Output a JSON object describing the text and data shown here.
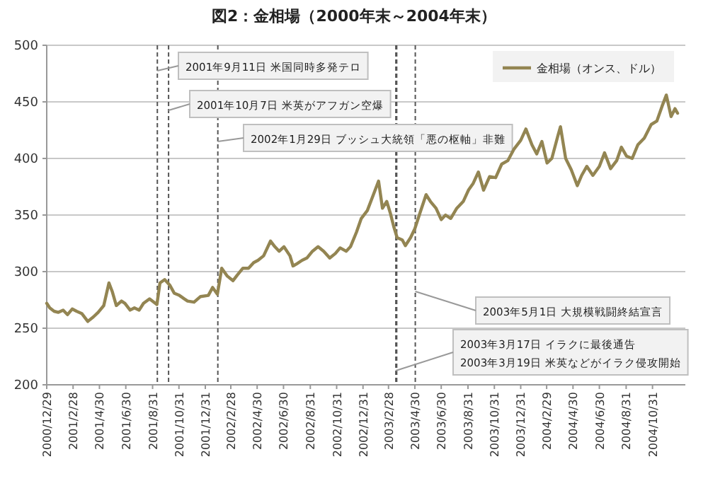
{
  "chart_data": {
    "type": "line",
    "title": "図2：金相場（2000年末～2004年末）",
    "x": [
      "2000-12-29",
      "2001-01-05",
      "2001-01-15",
      "2001-01-25",
      "2001-02-05",
      "2001-02-15",
      "2001-02-26",
      "2001-03-08",
      "2001-03-20",
      "2001-03-30",
      "2001-04-03",
      "2001-04-16",
      "2001-04-27",
      "2001-05-10",
      "2001-05-22",
      "2001-05-30",
      "2001-06-08",
      "2001-06-20",
      "2001-06-28",
      "2001-07-10",
      "2001-07-20",
      "2001-07-31",
      "2001-08-10",
      "2001-08-24",
      "2001-09-10",
      "2001-09-17",
      "2001-09-28",
      "2001-10-10",
      "2001-10-20",
      "2001-11-01",
      "2001-11-12",
      "2001-11-20",
      "2001-12-05",
      "2001-12-20",
      "2002-01-07",
      "2002-01-17",
      "2002-01-28",
      "2002-02-07",
      "2002-02-20",
      "2002-03-05",
      "2002-03-15",
      "2002-03-28",
      "2002-04-10",
      "2002-04-22",
      "2002-05-02",
      "2002-05-15",
      "2002-05-31",
      "2002-06-10",
      "2002-06-20",
      "2002-07-01",
      "2002-07-15",
      "2002-07-22",
      "2002-07-31",
      "2002-08-12",
      "2002-08-23",
      "2002-09-05",
      "2002-09-18",
      "2002-10-01",
      "2002-10-15",
      "2002-10-28",
      "2002-11-08",
      "2002-11-22",
      "2002-12-02",
      "2002-12-16",
      "2002-12-27",
      "2003-01-10",
      "2003-01-24",
      "2003-02-05",
      "2003-02-14",
      "2003-02-24",
      "2003-03-04",
      "2003-03-12",
      "2003-03-20",
      "2003-04-01",
      "2003-04-08",
      "2003-04-20",
      "2003-04-30",
      "2003-05-12",
      "2003-05-26",
      "2003-06-05",
      "2003-06-18",
      "2003-06-30",
      "2003-07-10",
      "2003-07-22",
      "2003-08-05",
      "2003-08-20",
      "2003-09-01",
      "2003-09-12",
      "2003-09-24",
      "2003-10-06",
      "2003-10-20",
      "2003-11-03",
      "2003-11-17",
      "2003-12-01",
      "2003-12-15",
      "2003-12-31",
      "2004-01-12",
      "2004-01-26",
      "2004-02-06",
      "2004-02-18",
      "2004-03-01",
      "2004-03-12",
      "2004-03-26",
      "2004-04-01",
      "2004-04-13",
      "2004-04-26",
      "2004-05-10",
      "2004-05-20",
      "2004-06-01",
      "2004-06-15",
      "2004-06-30",
      "2004-07-12",
      "2004-07-26",
      "2004-08-09",
      "2004-08-20",
      "2004-09-01",
      "2004-09-14",
      "2004-09-27",
      "2004-10-12",
      "2004-10-28",
      "2004-11-10",
      "2004-11-22",
      "2004-12-02",
      "2004-12-13",
      "2004-12-22",
      "2004-12-28"
    ],
    "series": [
      {
        "name": "金相場（オンス、ドル）",
        "color": "#938552",
        "values": [
          272,
          268,
          265,
          264,
          266,
          262,
          267,
          265,
          263,
          258,
          256,
          260,
          264,
          270,
          290,
          282,
          270,
          274,
          272,
          266,
          268,
          266,
          272,
          276,
          271,
          290,
          293,
          288,
          281,
          279,
          276,
          274,
          273,
          278,
          279,
          286,
          280,
          303,
          296,
          292,
          297,
          303,
          303,
          308,
          310,
          314,
          327,
          322,
          318,
          322,
          314,
          305,
          307,
          310,
          312,
          318,
          322,
          318,
          312,
          316,
          321,
          318,
          322,
          335,
          347,
          354,
          368,
          380,
          356,
          362,
          352,
          340,
          330,
          328,
          323,
          330,
          338,
          352,
          368,
          362,
          356,
          346,
          350,
          347,
          356,
          362,
          372,
          378,
          388,
          372,
          384,
          383,
          395,
          398,
          408,
          416,
          426,
          412,
          404,
          415,
          396,
          400,
          420,
          428,
          400,
          390,
          376,
          385,
          393,
          385,
          393,
          405,
          391,
          398,
          410,
          402,
          400,
          412,
          418,
          430,
          433,
          446,
          456,
          437,
          444,
          440
        ]
      }
    ],
    "xlim": [
      "2000-12-29",
      "2005-01-15"
    ],
    "xticks": [
      {
        "value": "2000-12-29",
        "label": "2000/12/29"
      },
      {
        "value": "2001-02-28",
        "label": "2001/2/28"
      },
      {
        "value": "2001-04-30",
        "label": "2001/4/30"
      },
      {
        "value": "2001-06-30",
        "label": "2001/6/30"
      },
      {
        "value": "2001-08-31",
        "label": "2001/8/31"
      },
      {
        "value": "2001-10-31",
        "label": "2001/10/31"
      },
      {
        "value": "2001-12-31",
        "label": "2001/12/31"
      },
      {
        "value": "2002-02-28",
        "label": "2002/2/28"
      },
      {
        "value": "2002-04-30",
        "label": "2002/4/30"
      },
      {
        "value": "2002-06-30",
        "label": "2002/6/30"
      },
      {
        "value": "2002-08-31",
        "label": "2002/8/31"
      },
      {
        "value": "2002-10-31",
        "label": "2002/10/31"
      },
      {
        "value": "2002-12-31",
        "label": "2002/12/31"
      },
      {
        "value": "2003-02-28",
        "label": "2003/2/28"
      },
      {
        "value": "2003-04-30",
        "label": "2003/4/30"
      },
      {
        "value": "2003-06-30",
        "label": "2003/6/30"
      },
      {
        "value": "2003-08-31",
        "label": "2003/8/31"
      },
      {
        "value": "2003-10-31",
        "label": "2003/10/31"
      },
      {
        "value": "2003-12-31",
        "label": "2003/12/31"
      },
      {
        "value": "2004-02-29",
        "label": "2004/2/29"
      },
      {
        "value": "2004-04-30",
        "label": "2004/4/30"
      },
      {
        "value": "2004-06-30",
        "label": "2004/6/30"
      },
      {
        "value": "2004-08-31",
        "label": "2004/8/31"
      },
      {
        "value": "2004-10-31",
        "label": "2004/10/31"
      }
    ],
    "ylim": [
      200,
      500
    ],
    "yticks": [
      200,
      250,
      300,
      350,
      400,
      450,
      500
    ],
    "grid": "y",
    "legend": "top right",
    "marker": "none",
    "line_style": "solid",
    "ref_lines": [
      {
        "axis": "x",
        "value": "2001-09-11",
        "label": "2001年9月11日 米国同時多発テロ",
        "line_style": "dashed"
      },
      {
        "axis": "x",
        "value": "2001-10-07",
        "label": "2001年10月7日 米英がアフガン空爆",
        "line_style": "dashed"
      },
      {
        "axis": "x",
        "value": "2002-01-29",
        "label": "2002年1月29日 ブッシュ大統領「悪の枢軸」非難",
        "line_style": "dashed"
      },
      {
        "axis": "x",
        "value": "2003-03-17",
        "label": "2003年3月17日 イラクに最後通告",
        "line_style": "dashed"
      },
      {
        "axis": "x",
        "value": "2003-03-19",
        "label": "2003年3月19日 米英などがイラク侵攻開始",
        "line_style": "dashed"
      },
      {
        "axis": "x",
        "value": "2003-05-01",
        "label": "2003年5月1日 大規模戦闘終結宣言",
        "line_style": "dashed"
      }
    ]
  }
}
